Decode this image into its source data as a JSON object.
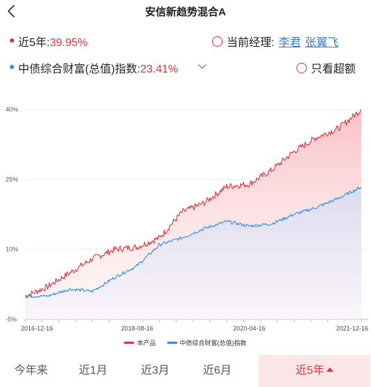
{
  "header": {
    "title": "安信新趋势混合A"
  },
  "metrics": {
    "product": {
      "label": "近5年:",
      "value": "39.95%",
      "color": "#e0303a"
    },
    "index": {
      "label": "中债综合财富(总值)指数:",
      "value": "23.41%",
      "color": "#2e8ee8"
    }
  },
  "manager": {
    "label": "当前经理:",
    "names": [
      "李君",
      "张翼飞"
    ]
  },
  "excess": {
    "label": "只看超额"
  },
  "chart_data": {
    "type": "area",
    "y_ticks": [
      "40%",
      "25%",
      "10%",
      "-5%"
    ],
    "x_ticks": [
      "2016-12-16",
      "2018-08-16",
      "2020-04-16",
      "2021-12-16"
    ],
    "ylim": [
      -5,
      40
    ],
    "x": [
      "2016-12-16",
      "2017-04-16",
      "2017-08-16",
      "2017-12-16",
      "2018-04-16",
      "2018-08-16",
      "2018-12-16",
      "2019-04-16",
      "2019-08-16",
      "2019-12-16",
      "2020-04-16",
      "2020-08-16",
      "2020-12-16",
      "2021-04-16",
      "2021-08-16",
      "2021-12-16"
    ],
    "series": [
      {
        "name": "本产品",
        "color": "#e0303a",
        "values": [
          0,
          2.0,
          5.0,
          8.0,
          10.0,
          10.5,
          12.5,
          18.0,
          20.0,
          23.5,
          24.0,
          27.0,
          31.0,
          34.0,
          36.0,
          40.0
        ]
      },
      {
        "name": "中债综合财富(总值)指数",
        "color": "#2e8ee8",
        "values": [
          0,
          0.0,
          1.5,
          1.0,
          4.0,
          6.5,
          11.0,
          12.5,
          14.5,
          16.0,
          15.0,
          15.5,
          17.5,
          19.0,
          21.0,
          23.4
        ]
      }
    ]
  },
  "tabs": [
    {
      "label": "今年来"
    },
    {
      "label": "近1月"
    },
    {
      "label": "近3月"
    },
    {
      "label": "近6月"
    },
    {
      "label": "近5年",
      "active": true
    }
  ]
}
